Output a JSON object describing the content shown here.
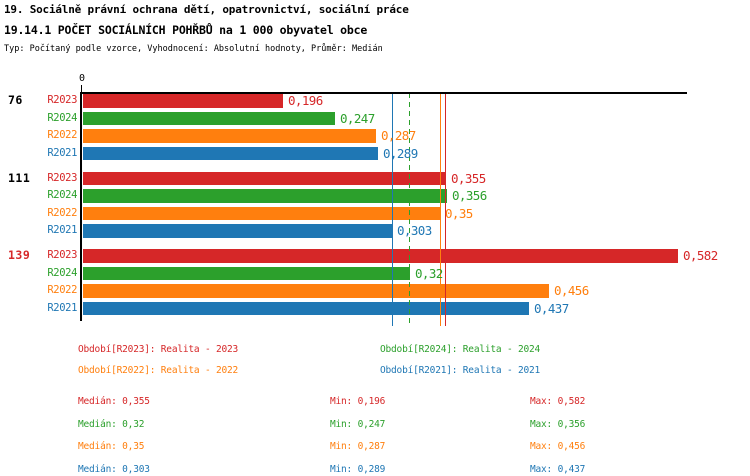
{
  "chart_data": {
    "type": "bar",
    "orientation": "horizontal",
    "title": "19. Sociálně právní ochrana dětí, opatrovnictví, sociální práce",
    "subtitle": "19.14.1 POČET SOCIÁLNÍCH POHŘBŮ na 1 000 obyvatel obce",
    "meta": "Typ: Počítaný podle vzorce, Vyhodnocení: Absolutní hodnoty, Průměr: Medián",
    "axis": {
      "origin_label": "0",
      "xlim": [
        0,
        0.59
      ],
      "grid": false
    },
    "series": [
      {
        "id": "R2023",
        "label": "R2023",
        "color": "#d62728",
        "legend": "Období[R2023]: Realita - 2023"
      },
      {
        "id": "R2024",
        "label": "R2024",
        "color": "#2ca02c",
        "legend": "Období[R2024]: Realita - 2024"
      },
      {
        "id": "R2022",
        "label": "R2022",
        "color": "#ff7f0e",
        "legend": "Období[R2022]: Realita - 2022"
      },
      {
        "id": "R2021",
        "label": "R2021",
        "color": "#1f77b4",
        "legend": "Období[R2021]: Realita - 2021"
      }
    ],
    "groups": [
      {
        "label": "76",
        "label_color": "#000000",
        "values": [
          {
            "series": "R2023",
            "num": 0.196,
            "text": "0,196"
          },
          {
            "series": "R2024",
            "num": 0.247,
            "text": "0,247"
          },
          {
            "series": "R2022",
            "num": 0.287,
            "text": "0,287"
          },
          {
            "series": "R2021",
            "num": 0.289,
            "text": "0,289"
          }
        ]
      },
      {
        "label": "111",
        "label_color": "#000000",
        "values": [
          {
            "series": "R2023",
            "num": 0.355,
            "text": "0,355"
          },
          {
            "series": "R2024",
            "num": 0.356,
            "text": "0,356"
          },
          {
            "series": "R2022",
            "num": 0.35,
            "text": "0,35"
          },
          {
            "series": "R2021",
            "num": 0.303,
            "text": "0,303"
          }
        ]
      },
      {
        "label": "139",
        "label_color": "#d62728",
        "values": [
          {
            "series": "R2023",
            "num": 0.582,
            "text": "0,582"
          },
          {
            "series": "R2024",
            "num": 0.32,
            "text": "0,32"
          },
          {
            "series": "R2022",
            "num": 0.456,
            "text": "0,456"
          },
          {
            "series": "R2021",
            "num": 0.437,
            "text": "0,437"
          }
        ]
      }
    ],
    "median_lines": [
      {
        "series": "R2021",
        "num": 0.303,
        "color": "#1f77b4",
        "style": "solid"
      },
      {
        "series": "R2024",
        "num": 0.32,
        "color": "#2ca02c",
        "style": "dashed"
      },
      {
        "series": "R2022",
        "num": 0.35,
        "color": "#ff7f0e",
        "style": "solid"
      },
      {
        "series": "R2023",
        "num": 0.355,
        "color": "#d62728",
        "style": "solid"
      }
    ],
    "legend_layout": {
      "order": [
        "R2023",
        "R2024",
        "R2022",
        "R2021"
      ]
    },
    "stats": [
      {
        "series": "R2023",
        "color": "#d62728",
        "median": "Medián: 0,355",
        "min": "Min: 0,196",
        "max": "Max: 0,582"
      },
      {
        "series": "R2024",
        "color": "#2ca02c",
        "median": "Medián: 0,32",
        "min": "Min: 0,247",
        "max": "Max: 0,356"
      },
      {
        "series": "R2022",
        "color": "#ff7f0e",
        "median": "Medián: 0,35",
        "min": "Min: 0,287",
        "max": "Max: 0,456"
      },
      {
        "series": "R2021",
        "color": "#1f77b4",
        "median": "Medián: 0,303",
        "min": "Min: 0,289",
        "max": "Max: 0,437"
      }
    ]
  }
}
